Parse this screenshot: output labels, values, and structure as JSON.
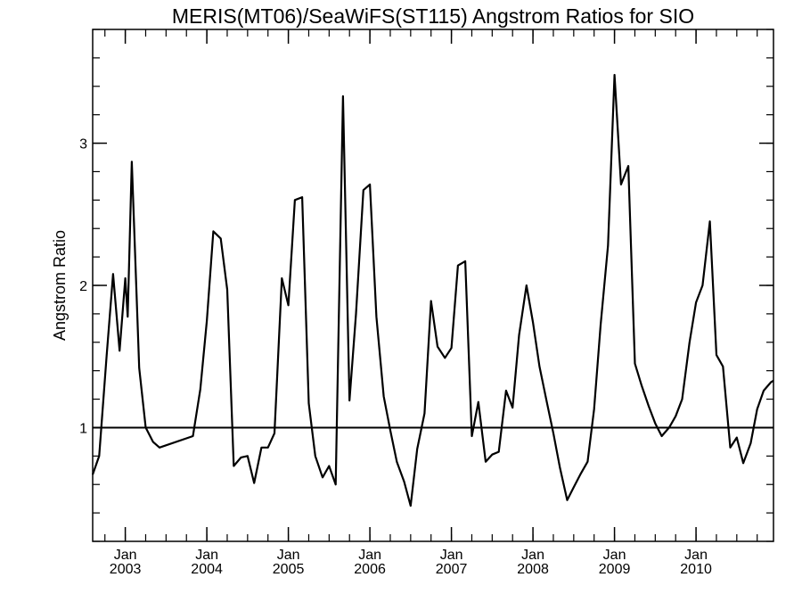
{
  "chart_data": {
    "type": "line",
    "title": "MERIS(MT06)/SeaWiFS(ST115)  Angstrom Ratios for SIO",
    "xlabel": "",
    "ylabel": "Angstrom Ratio",
    "xlim": [
      2002.6,
      2010.95
    ],
    "ylim": [
      0.2,
      3.8
    ],
    "yticks": [
      1,
      2,
      3
    ],
    "xticks": [
      {
        "month": "Jan",
        "year": "2003",
        "x": 2003.0
      },
      {
        "month": "Jan",
        "year": "2004",
        "x": 2004.0
      },
      {
        "month": "Jan",
        "year": "2005",
        "x": 2005.0
      },
      {
        "month": "Jan",
        "year": "2006",
        "x": 2006.0
      },
      {
        "month": "Jan",
        "year": "2007",
        "x": 2007.0
      },
      {
        "month": "Jan",
        "year": "2008",
        "x": 2008.0
      },
      {
        "month": "Jan",
        "year": "2009",
        "x": 2009.0
      },
      {
        "month": "Jan",
        "year": "2010",
        "x": 2010.0
      }
    ],
    "reference_line": {
      "y": 1
    },
    "grid": false,
    "series": [
      {
        "color": "#000000",
        "x": [
          2002.6,
          2002.68,
          2002.77,
          2002.85,
          2002.93,
          2003.0,
          2003.03,
          2003.08,
          2003.17,
          2003.25,
          2003.34,
          2003.42,
          2003.83,
          2003.92,
          2004.0,
          2004.08,
          2004.17,
          2004.25,
          2004.33,
          2004.42,
          2004.5,
          2004.58,
          2004.67,
          2004.75,
          2004.83,
          2004.92,
          2005.0,
          2005.08,
          2005.17,
          2005.25,
          2005.33,
          2005.42,
          2005.5,
          2005.58,
          2005.67,
          2005.75,
          2005.83,
          2005.92,
          2006.0,
          2006.08,
          2006.17,
          2006.25,
          2006.33,
          2006.42,
          2006.5,
          2006.58,
          2006.67,
          2006.75,
          2006.83,
          2006.92,
          2007.0,
          2007.08,
          2007.17,
          2007.25,
          2007.33,
          2007.42,
          2007.5,
          2007.58,
          2007.67,
          2007.75,
          2007.83,
          2007.92,
          2008.0,
          2008.08,
          2008.17,
          2008.25,
          2008.33,
          2008.42,
          2008.5,
          2008.58,
          2008.67,
          2008.75,
          2008.83,
          2008.92,
          2009.0,
          2009.08,
          2009.17,
          2009.25,
          2009.33,
          2009.42,
          2009.5,
          2009.58,
          2009.67,
          2009.75,
          2009.83,
          2009.92,
          2010.0,
          2010.08,
          2010.17,
          2010.25,
          2010.33,
          2010.42,
          2010.5,
          2010.58,
          2010.67,
          2010.75,
          2010.83,
          2010.92,
          2010.95
        ],
        "y": [
          0.67,
          0.8,
          1.5,
          2.08,
          1.54,
          2.05,
          1.78,
          2.87,
          1.42,
          1.0,
          0.9,
          0.86,
          0.94,
          1.27,
          1.75,
          2.38,
          2.33,
          1.97,
          0.73,
          0.79,
          0.8,
          0.61,
          0.86,
          0.86,
          0.96,
          2.05,
          1.86,
          2.6,
          2.62,
          1.17,
          0.8,
          0.65,
          0.73,
          0.6,
          3.33,
          1.19,
          1.8,
          2.67,
          2.71,
          1.78,
          1.22,
          0.98,
          0.76,
          0.62,
          0.45,
          0.85,
          1.1,
          1.89,
          1.57,
          1.49,
          1.56,
          2.14,
          2.17,
          0.94,
          1.18,
          0.76,
          0.81,
          0.83,
          1.26,
          1.14,
          1.65,
          2.0,
          1.74,
          1.43,
          1.18,
          0.96,
          0.72,
          0.49,
          0.58,
          0.67,
          0.76,
          1.13,
          1.72,
          2.28,
          3.48,
          2.71,
          2.84,
          1.45,
          1.3,
          1.15,
          1.03,
          0.94,
          1.0,
          1.08,
          1.2,
          1.6,
          1.88,
          2.0,
          2.45,
          1.51,
          1.43,
          0.86,
          0.93,
          0.75,
          0.89,
          1.13,
          1.26,
          1.32,
          1.33
        ]
      }
    ]
  }
}
